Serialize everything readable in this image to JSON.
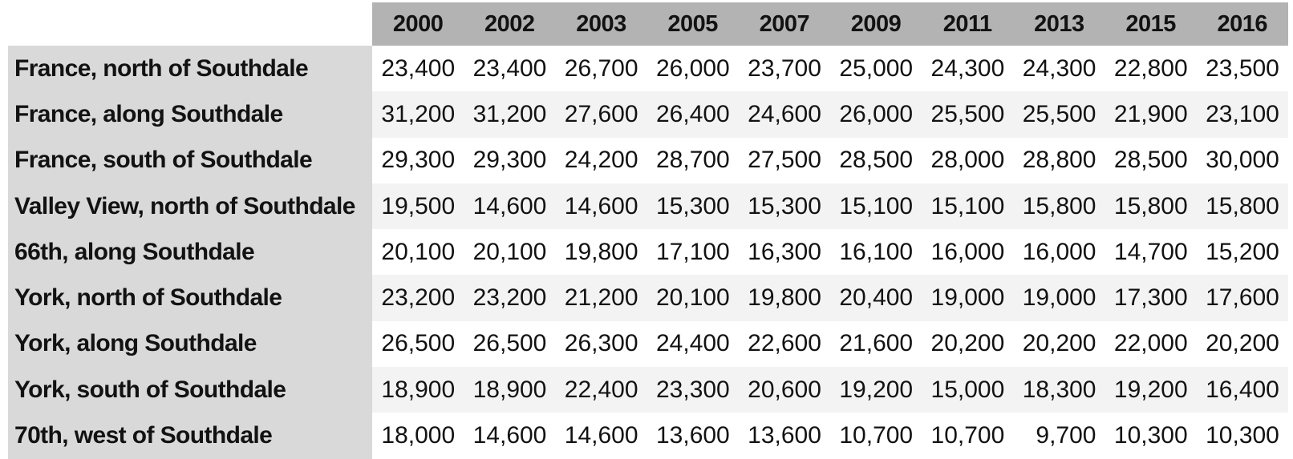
{
  "colors": {
    "header_bg": "#b3b3b3",
    "row_label_bg": "#d9d9d9",
    "alt_row_bg": "#f3f3f3",
    "row_bg": "#ffffff",
    "text": "#121212"
  },
  "table": {
    "columns": [
      "2000",
      "2002",
      "2003",
      "2005",
      "2007",
      "2009",
      "2011",
      "2013",
      "2015",
      "2016"
    ],
    "rows": [
      {
        "label": "France, north of Southdale",
        "values": [
          "23,400",
          "23,400",
          "26,700",
          "26,000",
          "23,700",
          "25,000",
          "24,300",
          "24,300",
          "22,800",
          "23,500"
        ]
      },
      {
        "label": "France, along Southdale",
        "values": [
          "31,200",
          "31,200",
          "27,600",
          "26,400",
          "24,600",
          "26,000",
          "25,500",
          "25,500",
          "21,900",
          "23,100"
        ]
      },
      {
        "label": "France, south of Southdale",
        "values": [
          "29,300",
          "29,300",
          "24,200",
          "28,700",
          "27,500",
          "28,500",
          "28,000",
          "28,800",
          "28,500",
          "30,000"
        ]
      },
      {
        "label": "Valley View, north of Southdale",
        "values": [
          "19,500",
          "14,600",
          "14,600",
          "15,300",
          "15,300",
          "15,100",
          "15,100",
          "15,800",
          "15,800",
          "15,800"
        ]
      },
      {
        "label": "66th, along Southdale",
        "values": [
          "20,100",
          "20,100",
          "19,800",
          "17,100",
          "16,300",
          "16,100",
          "16,000",
          "16,000",
          "14,700",
          "15,200"
        ]
      },
      {
        "label": "York, north of Southdale",
        "values": [
          "23,200",
          "23,200",
          "21,200",
          "20,100",
          "19,800",
          "20,400",
          "19,000",
          "19,000",
          "17,300",
          "17,600"
        ]
      },
      {
        "label": "York, along Southdale",
        "values": [
          "26,500",
          "26,500",
          "26,300",
          "24,400",
          "22,600",
          "21,600",
          "20,200",
          "20,200",
          "22,000",
          "20,200"
        ]
      },
      {
        "label": "York, south of Southdale",
        "values": [
          "18,900",
          "18,900",
          "22,400",
          "23,300",
          "20,600",
          "19,200",
          "15,000",
          "18,300",
          "19,200",
          "16,400"
        ]
      },
      {
        "label": "70th, west of Southdale",
        "values": [
          "18,000",
          "14,600",
          "14,600",
          "13,600",
          "13,600",
          "10,700",
          "10,700",
          "9,700",
          "10,300",
          "10,300"
        ]
      }
    ]
  },
  "chart_data": {
    "type": "table",
    "categories": [
      "2000",
      "2002",
      "2003",
      "2005",
      "2007",
      "2009",
      "2011",
      "2013",
      "2015",
      "2016"
    ],
    "series": [
      {
        "name": "France, north of Southdale",
        "values": [
          23400,
          23400,
          26700,
          26000,
          23700,
          25000,
          24300,
          24300,
          22800,
          23500
        ]
      },
      {
        "name": "France, along Southdale",
        "values": [
          31200,
          31200,
          27600,
          26400,
          24600,
          26000,
          25500,
          25500,
          21900,
          23100
        ]
      },
      {
        "name": "France, south of Southdale",
        "values": [
          29300,
          29300,
          24200,
          28700,
          27500,
          28500,
          28000,
          28800,
          28500,
          30000
        ]
      },
      {
        "name": "Valley View, north of Southdale",
        "values": [
          19500,
          14600,
          14600,
          15300,
          15300,
          15100,
          15100,
          15800,
          15800,
          15800
        ]
      },
      {
        "name": "66th, along Southdale",
        "values": [
          20100,
          20100,
          19800,
          17100,
          16300,
          16100,
          16000,
          16000,
          14700,
          15200
        ]
      },
      {
        "name": "York, north of Southdale",
        "values": [
          23200,
          23200,
          21200,
          20100,
          19800,
          20400,
          19000,
          19000,
          17300,
          17600
        ]
      },
      {
        "name": "York, along Southdale",
        "values": [
          26500,
          26500,
          26300,
          24400,
          22600,
          21600,
          20200,
          20200,
          22000,
          20200
        ]
      },
      {
        "name": "York, south of Southdale",
        "values": [
          18900,
          18900,
          22400,
          23300,
          20600,
          19200,
          15000,
          18300,
          19200,
          16400
        ]
      },
      {
        "name": "70th, west of Southdale",
        "values": [
          18000,
          14600,
          14600,
          13600,
          13600,
          10700,
          10700,
          9700,
          10300,
          10300
        ]
      }
    ],
    "layout": {
      "header_row": true,
      "row_label_column": true,
      "alternating_row_shading": true
    }
  }
}
